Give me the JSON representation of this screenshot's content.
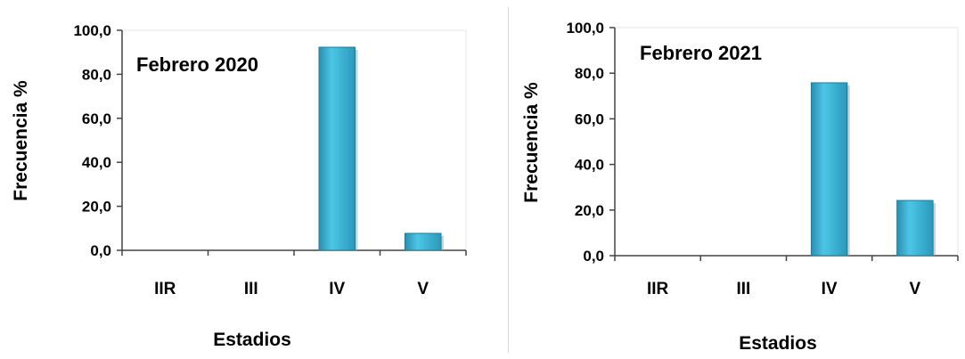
{
  "chart_data": [
    {
      "type": "bar",
      "title": "Febrero 2020",
      "xlabel": "Estadios",
      "ylabel": "Frecuencia %",
      "categories": [
        "IIR",
        "III",
        "IV",
        "V"
      ],
      "values": [
        0,
        0,
        92.3,
        7.7
      ],
      "ylim": [
        0,
        100
      ],
      "yticks": [
        "0,0",
        "20,0",
        "40,0",
        "60,0",
        "80,0",
        "100,0"
      ],
      "grid": false,
      "bar_color": "#3fb6d6"
    },
    {
      "type": "bar",
      "title": "Febrero 2021",
      "xlabel": "Estadios",
      "ylabel": "Frecuencia %",
      "categories": [
        "IIR",
        "III",
        "IV",
        "V"
      ],
      "values": [
        0,
        0,
        75.8,
        24.2
      ],
      "ylim": [
        0,
        100
      ],
      "yticks": [
        "0,0",
        "20,0",
        "40,0",
        "60,0",
        "80,0",
        "100,0"
      ],
      "grid": false,
      "bar_color": "#3fb6d6"
    }
  ]
}
